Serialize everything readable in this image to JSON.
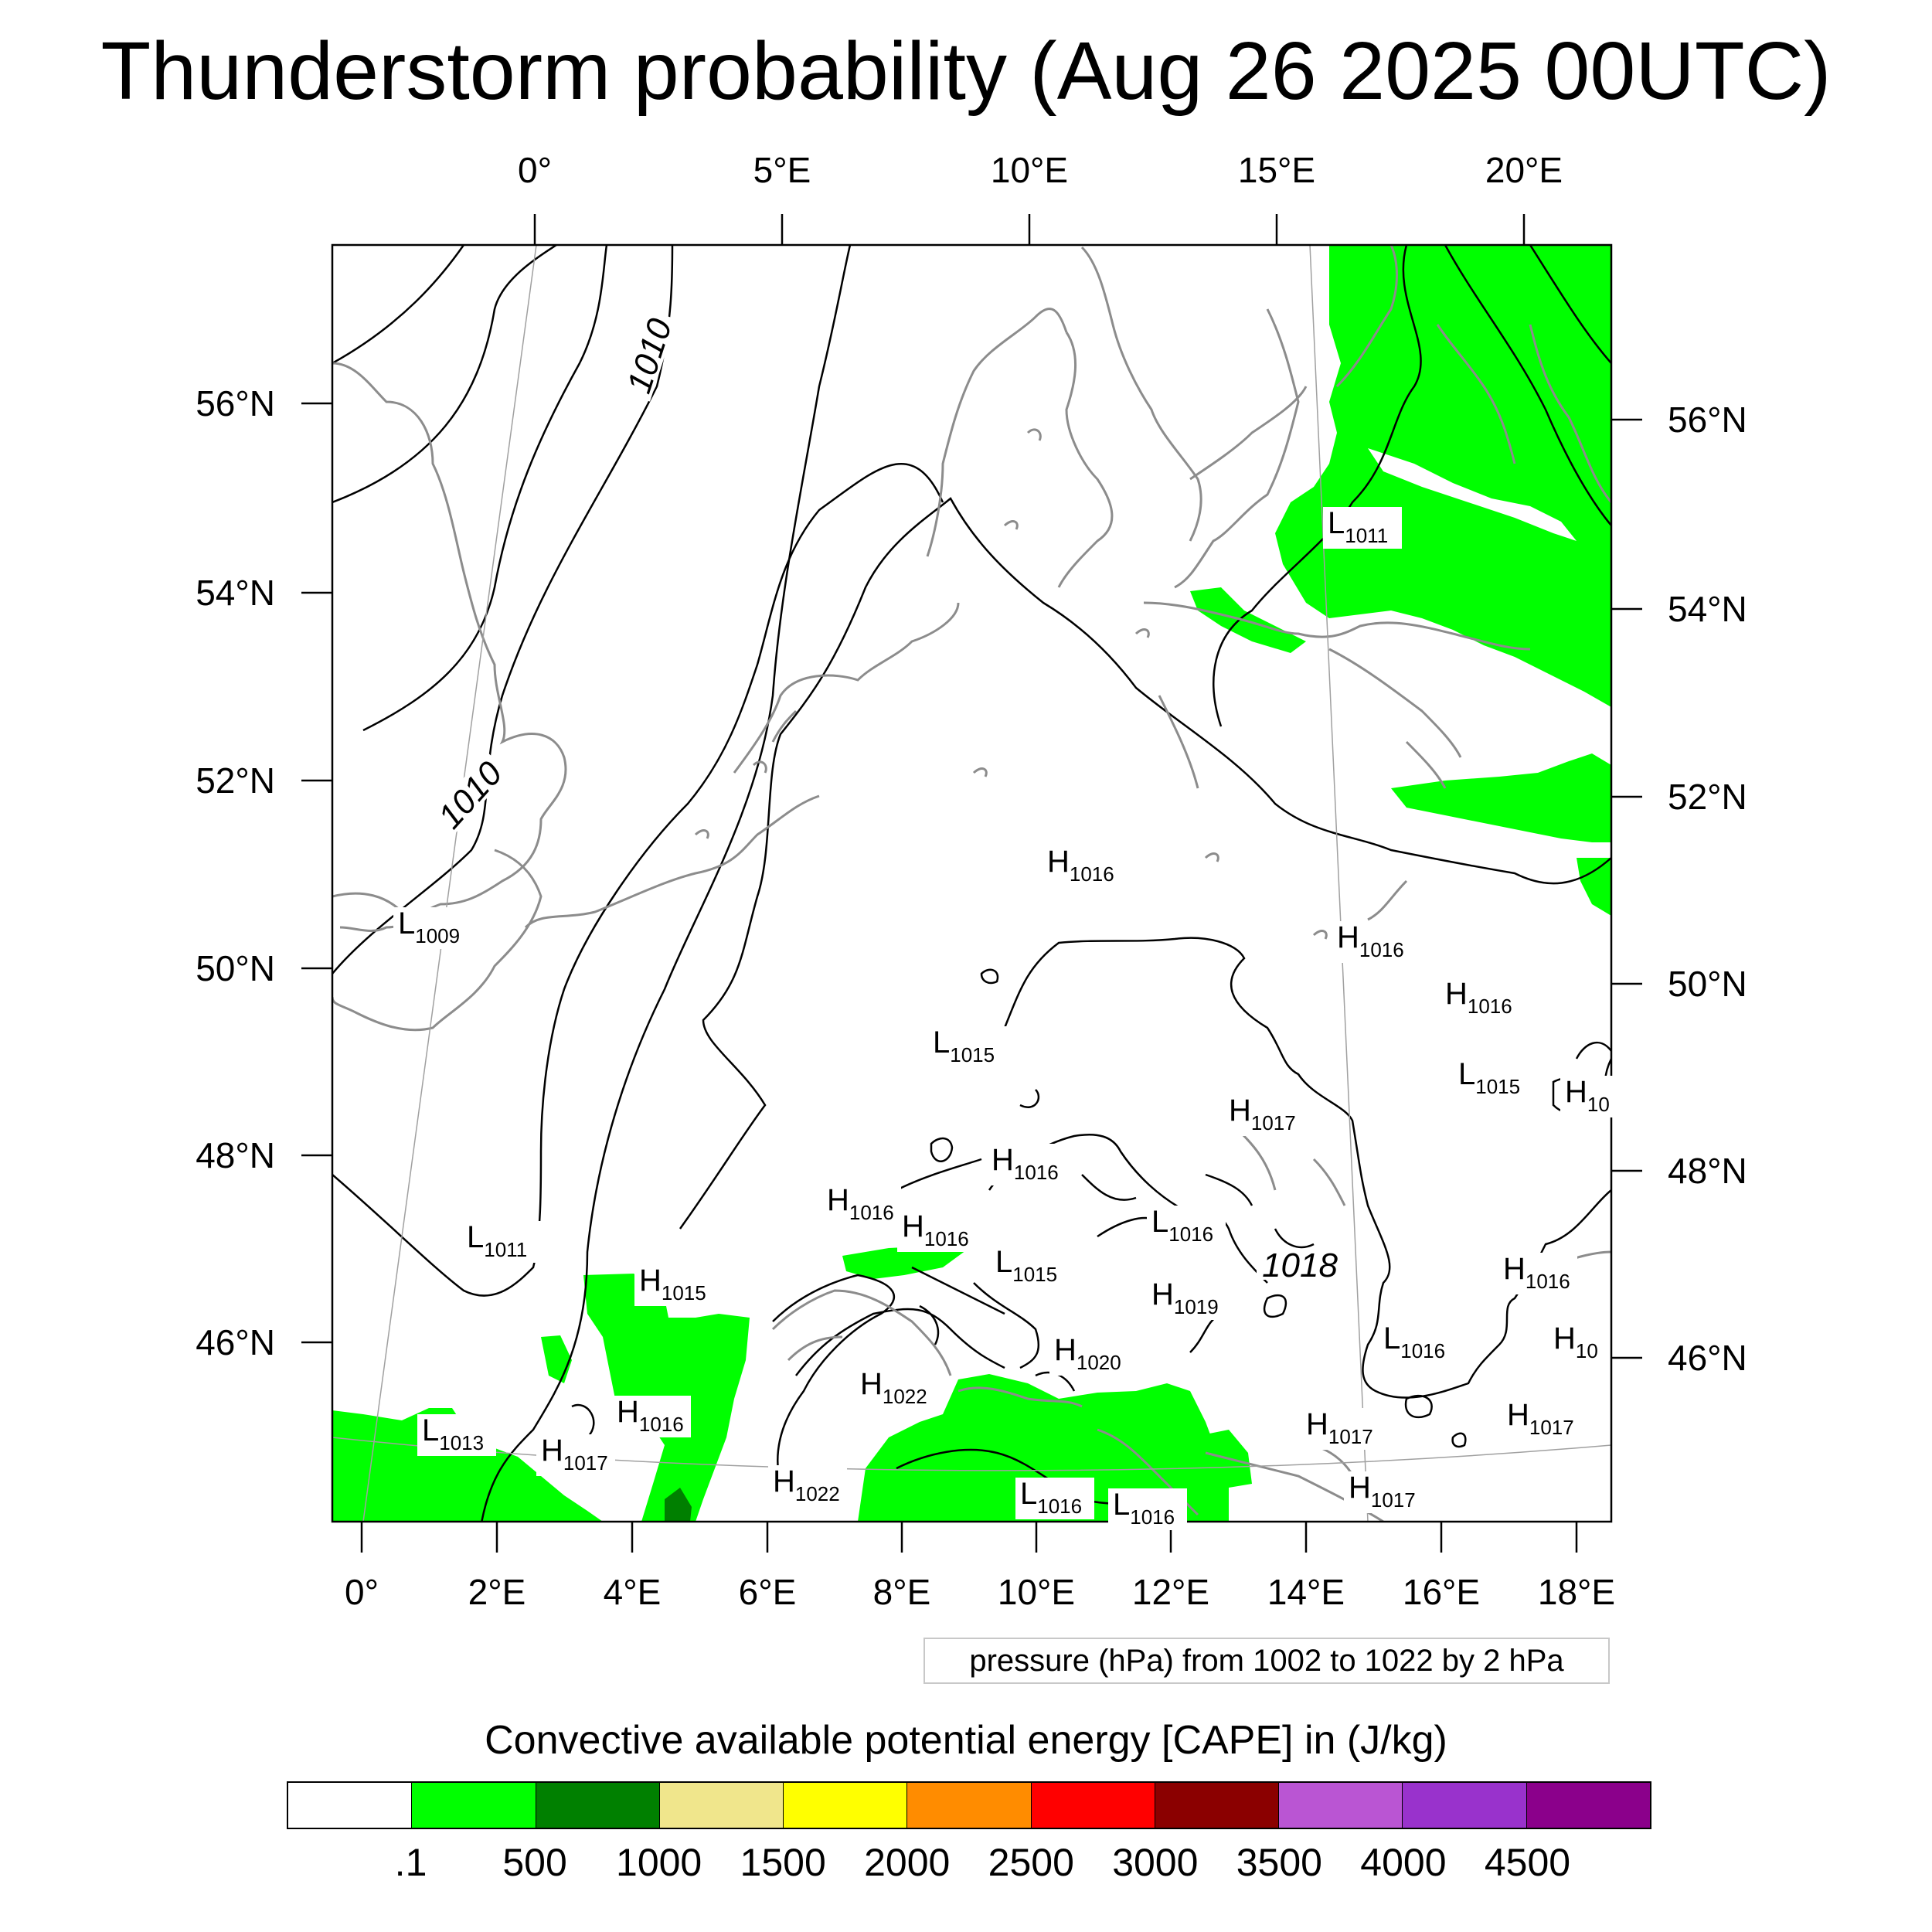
{
  "title": "Thunderstorm probability (Aug 26 2025 00UTC)",
  "map": {
    "top_lon_labels": [
      "0°",
      "5°E",
      "10°E",
      "15°E",
      "20°E"
    ],
    "bottom_lon_labels": [
      "0°",
      "2°E",
      "4°E",
      "6°E",
      "8°E",
      "10°E",
      "12°E",
      "14°E",
      "16°E",
      "18°E"
    ],
    "left_lat_labels": [
      "56°N",
      "54°N",
      "52°N",
      "50°N",
      "48°N",
      "46°N"
    ],
    "right_lat_labels": [
      "56°N",
      "54°N",
      "52°N",
      "50°N",
      "48°N",
      "46°N"
    ],
    "contour_labels": [
      "1010",
      "1010",
      "1018"
    ],
    "pressure_centers": [
      {
        "type": "L",
        "value": "1011"
      },
      {
        "type": "H",
        "value": "1016"
      },
      {
        "type": "L",
        "value": "1009"
      },
      {
        "type": "H",
        "value": "1016"
      },
      {
        "type": "H",
        "value": "1016"
      },
      {
        "type": "L",
        "value": "1015"
      },
      {
        "type": "L",
        "value": "1015"
      },
      {
        "type": "H",
        "value": "1017"
      },
      {
        "type": "H",
        "value": "10"
      },
      {
        "type": "H",
        "value": "1016"
      },
      {
        "type": "H",
        "value": "1016"
      },
      {
        "type": "H",
        "value": "1016"
      },
      {
        "type": "L",
        "value": "1016"
      },
      {
        "type": "L",
        "value": "1011"
      },
      {
        "type": "H",
        "value": "1015"
      },
      {
        "type": "L",
        "value": "1015"
      },
      {
        "type": "H",
        "value": "1019"
      },
      {
        "type": "H",
        "value": "1016"
      },
      {
        "type": "L",
        "value": "1016"
      },
      {
        "type": "H",
        "value": "10"
      },
      {
        "type": "H",
        "value": "1020"
      },
      {
        "type": "H",
        "value": "1016"
      },
      {
        "type": "H",
        "value": "1022"
      },
      {
        "type": "L",
        "value": "1013"
      },
      {
        "type": "H",
        "value": "1017"
      },
      {
        "type": "H",
        "value": "1017"
      },
      {
        "type": "H",
        "value": "1017"
      },
      {
        "type": "H",
        "value": "1017"
      },
      {
        "type": "H",
        "value": "1022"
      },
      {
        "type": "L",
        "value": "1016"
      },
      {
        "type": "L",
        "value": "1016"
      }
    ],
    "colors": {
      "frame": "#000000",
      "coastline": "#8c8c8c",
      "isobar": "#000000",
      "cape_low": "#00ff00",
      "cape_mid": "#007f00"
    }
  },
  "pressure_note": "pressure (hPa) from 1002 to 1022 by 2 hPa",
  "colorbar": {
    "title": "Convective available potential energy [CAPE] in (J/kg)",
    "colors": [
      "#ffffff",
      "#00ff00",
      "#008000",
      "#f0e68c",
      "#ffff00",
      "#ff8c00",
      "#ff0000",
      "#8b0000",
      "#ba55d3",
      "#9932cc",
      "#8b008b"
    ],
    "tick_labels": [
      ".1",
      "500",
      "1000",
      "1500",
      "2000",
      "2500",
      "3000",
      "3500",
      "4000",
      "4500"
    ]
  }
}
